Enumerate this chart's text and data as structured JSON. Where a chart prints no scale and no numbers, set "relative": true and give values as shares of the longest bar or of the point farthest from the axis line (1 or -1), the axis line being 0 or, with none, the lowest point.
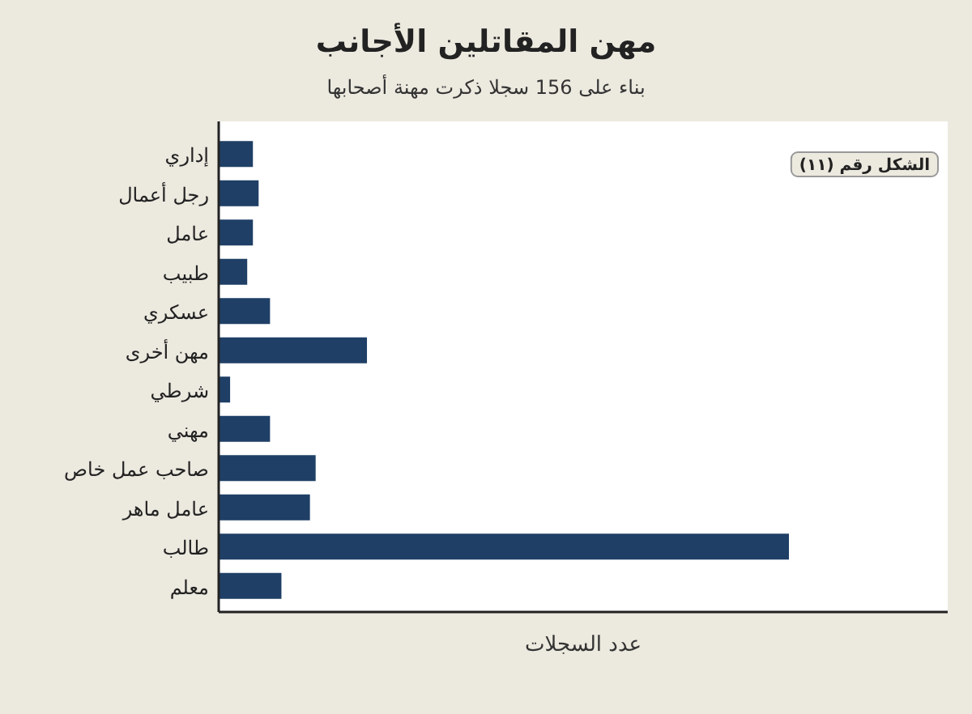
{
  "chart_data": {
    "type": "bar",
    "orientation": "horizontal",
    "relative": true,
    "title": "مهن المقاتلين الأجانب",
    "subtitle": "بناء على 156 سجلا ذكرت مهنة أصحابها",
    "xlabel": "عدد السجلات",
    "annotations": [
      "الشكل رقم (١١)"
    ],
    "categories": [
      "إداري",
      "رجل أعمال",
      "عامل",
      "طبيب",
      "عسكري",
      "مهن أخرى",
      "شرطي",
      "مهني",
      "صاحب عمل خاص",
      "عامل ماهر",
      "طالب",
      "معلم"
    ],
    "values": [
      0.06,
      0.07,
      0.06,
      0.05,
      0.09,
      0.26,
      0.02,
      0.09,
      0.17,
      0.16,
      1,
      0.11
    ],
    "color": "#1f3f66"
  }
}
